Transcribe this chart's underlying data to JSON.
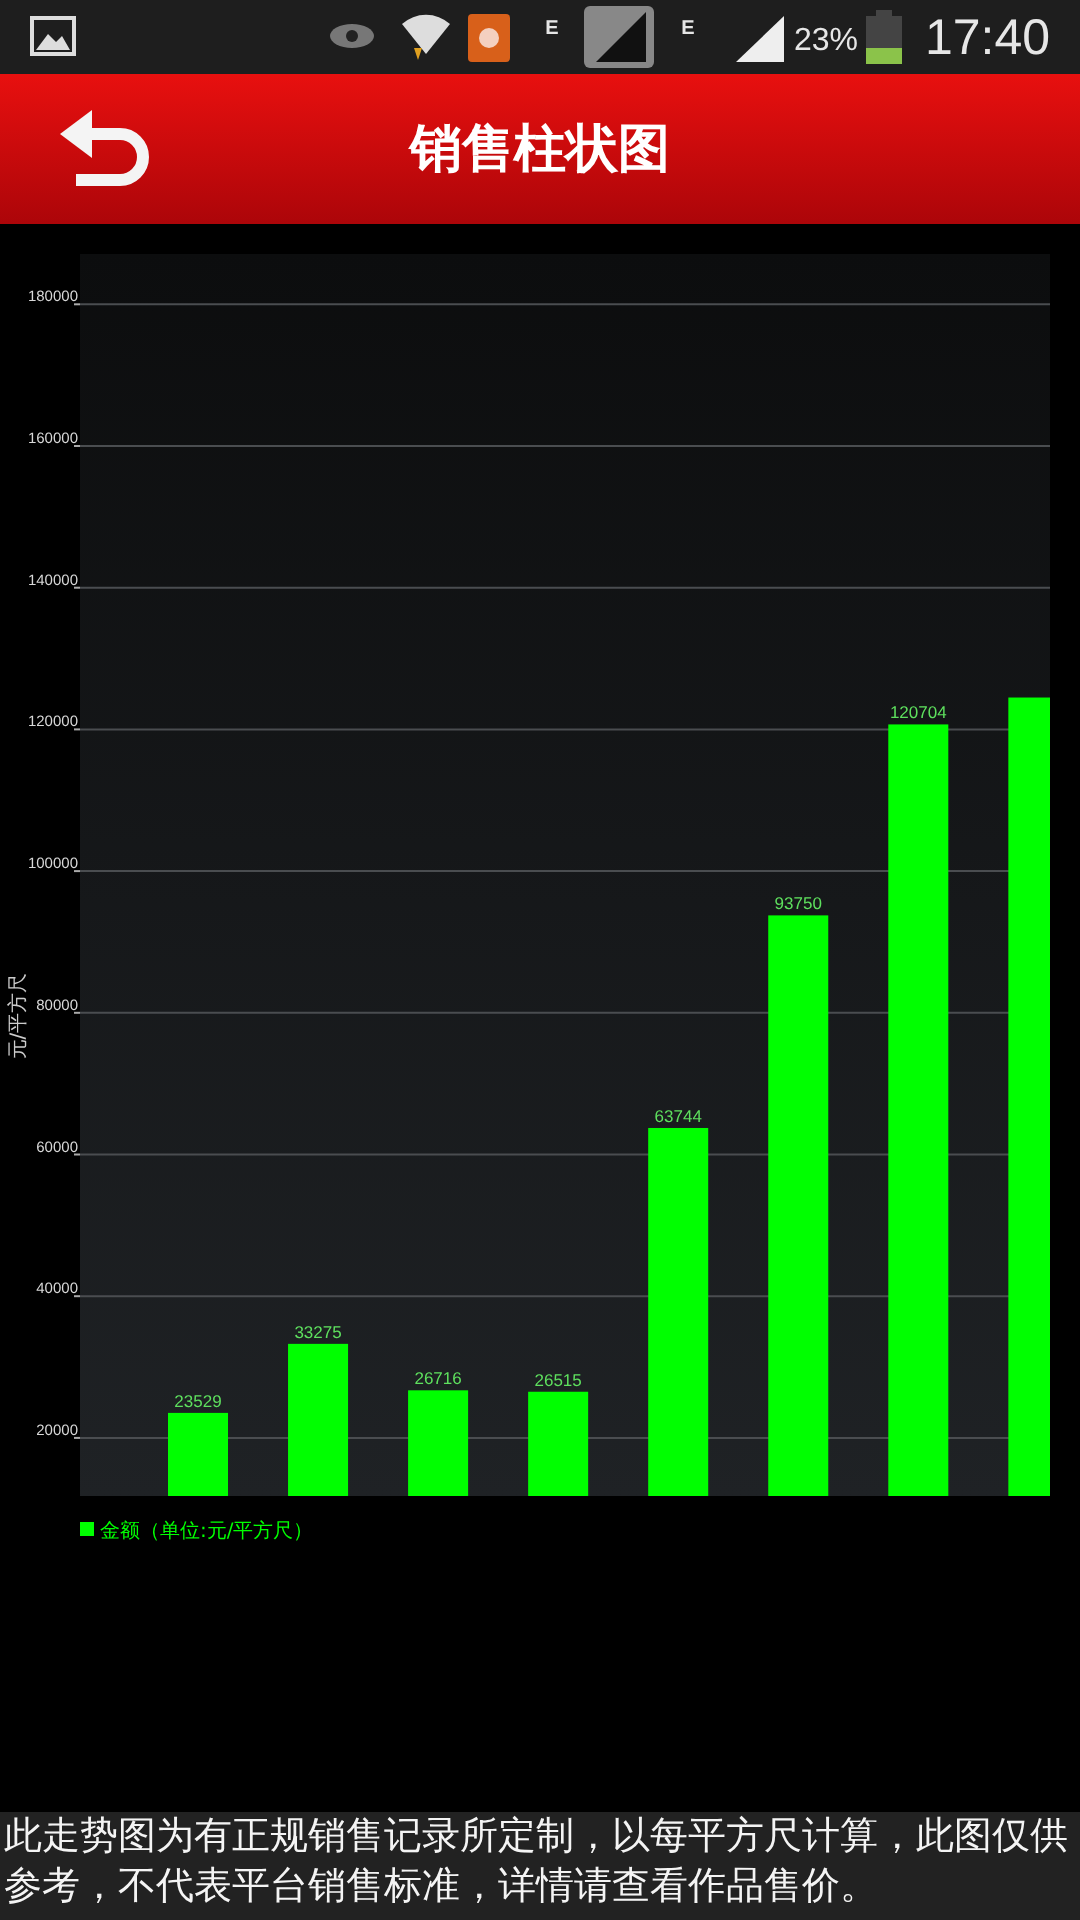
{
  "chart_data": {
    "type": "bar",
    "title": "销售柱状图",
    "ylabel": "元/平方尺",
    "categories": [
      null,
      null,
      null,
      null,
      null,
      null,
      null,
      null
    ],
    "series": [
      {
        "name": "金额（单位:元/平方尺）",
        "color": "#00ff00",
        "values": [
          23529,
          33275,
          26716,
          26515,
          63744,
          93750,
          120704,
          124500
        ],
        "value_labels": [
          "23529",
          "33275",
          "26716",
          "26515",
          "63744",
          "93750",
          "120704",
          null
        ]
      }
    ],
    "ylim": [
      11800,
      187100
    ],
    "yticks": [
      20000,
      40000,
      60000,
      80000,
      100000,
      120000,
      140000,
      160000,
      180000
    ],
    "grid": "y",
    "legend": "bottom",
    "annotations": [
      "此走势图为有正规销售记录所定制，以每平方尺计算，此图仅供参考，不代表平台销售标准，详情请查看作品售价。",
      "17:40",
      "23%",
      "E",
      "E"
    ]
  }
}
